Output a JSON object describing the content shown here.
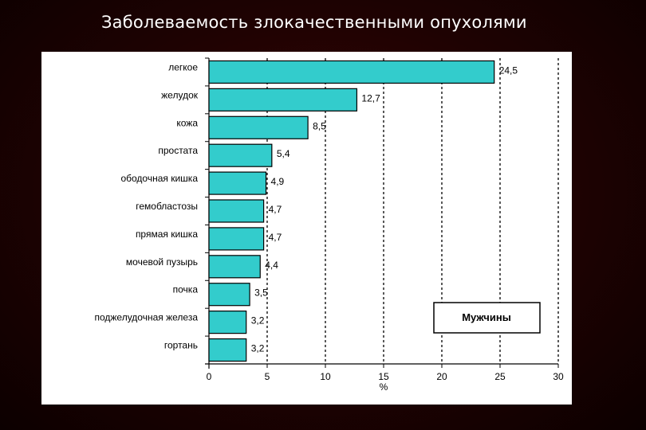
{
  "slide": {
    "title": "Заболеваемость злокачественными опухолями"
  },
  "chart_data": {
    "type": "bar",
    "orientation": "horizontal",
    "categories": [
      "легкое",
      "желудок",
      "кожа",
      "простата",
      "ободочная кишка",
      "гемобластозы",
      "прямая кишка",
      "мочевой пузырь",
      "почка",
      "поджелудочная железа",
      "гортань"
    ],
    "values": [
      24.5,
      12.7,
      8.5,
      5.4,
      4.9,
      4.7,
      4.7,
      4.4,
      3.5,
      3.2,
      3.2
    ],
    "value_labels": [
      "24,5",
      "12,7",
      "8,5",
      "5,4",
      "4,9",
      "4,7",
      "4,7",
      "4,4",
      "3,5",
      "3,2",
      "3,2"
    ],
    "xlim": [
      0,
      30
    ],
    "xticks": [
      0,
      5,
      10,
      15,
      20,
      25,
      30
    ],
    "xlabel": "%",
    "grid": "vertical dashed",
    "legend_box": "Мужчины",
    "legend_placement": "bottom-right",
    "bar_color": "#33cccc",
    "bar_outline": "#000000"
  }
}
